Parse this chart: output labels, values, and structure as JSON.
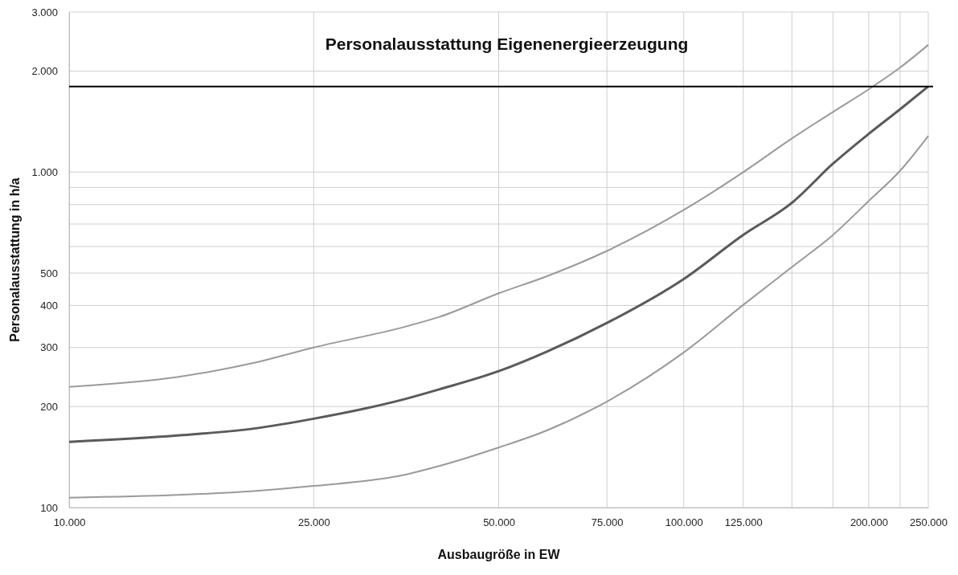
{
  "chart_data": {
    "type": "line",
    "title": "Personalausstattung Eigenenergieerzeugung",
    "xlabel": "Ausbaugröße in EW",
    "ylabel": "Personalausstattung in h/a",
    "log": "xy",
    "grid": true,
    "marker": "none",
    "line_style": "solid",
    "xlim": [
      10000,
      250000
    ],
    "xticks": [
      {
        "value": 10000,
        "label": "10.000"
      },
      {
        "value": 25000,
        "label": "25.000"
      },
      {
        "value": 50000,
        "label": "50.000"
      },
      {
        "value": 75000,
        "label": "75.000"
      },
      {
        "value": 100000,
        "label": "100.000"
      },
      {
        "value": 125000,
        "label": "125.000"
      },
      {
        "value": 150000,
        "label": null
      },
      {
        "value": 175000,
        "label": null
      },
      {
        "value": 200000,
        "label": "200.000"
      },
      {
        "value": 225000,
        "label": null
      },
      {
        "value": 250000,
        "label": "250.000"
      }
    ],
    "ylim": [
      100,
      3000
    ],
    "yticks": [
      100,
      200,
      300,
      400,
      500,
      {
        "value": 600,
        "label": null
      },
      {
        "value": 700,
        "label": null
      },
      {
        "value": 800,
        "label": null
      },
      {
        "value": 900,
        "label": null
      },
      {
        "value": 1000,
        "label": "1.000"
      },
      {
        "value": 2000,
        "label": "2.000"
      },
      {
        "value": 3000,
        "label": "3.000"
      }
    ],
    "x": [
      10000,
      15000,
      20000,
      25000,
      35000,
      40000,
      50000,
      60000,
      75000,
      100000,
      125000,
      150000,
      175000,
      200000,
      225000,
      250000
    ],
    "series": [
      {
        "color": "#9a9a9a",
        "values": [
          229,
          245,
          270,
          300,
          345,
          370,
          435,
          490,
          582,
          771,
          1000,
          1260,
          1512,
          1765,
          2050,
          2395
        ]
      },
      {
        "color": "#5a5a5a",
        "values": [
          157,
          164,
          172,
          184,
          210,
          225,
          255,
          292,
          355,
          480,
          650,
          810,
          1060,
          1300,
          1540,
          1800
        ]
      },
      {
        "color": "#9a9a9a",
        "values": [
          107,
          109,
          112,
          116,
          125,
          133,
          151,
          170,
          207,
          290,
          402,
          521,
          650,
          820,
          1010,
          1282
        ]
      }
    ],
    "ref_lines": [
      {
        "axis": "y",
        "value": 1800,
        "color": "#000000"
      }
    ]
  }
}
